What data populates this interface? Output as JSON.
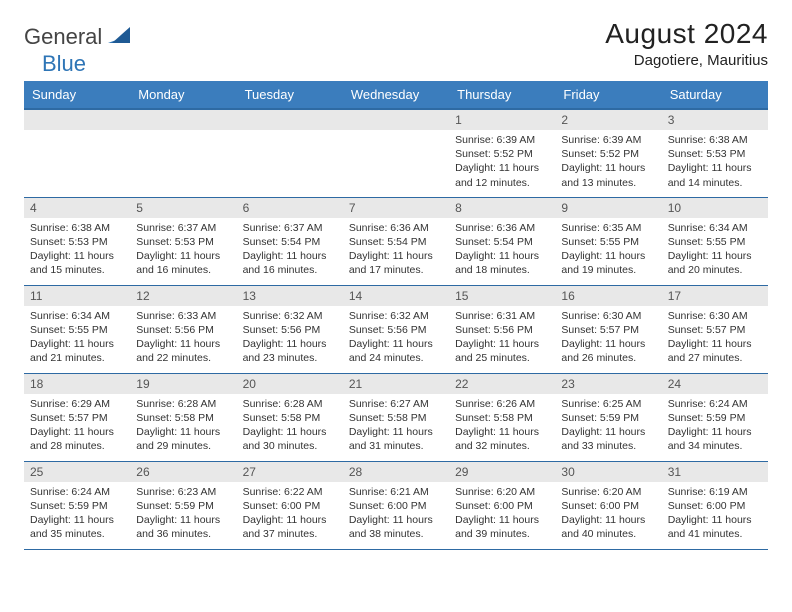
{
  "brand": {
    "word1": "General",
    "word2": "Blue",
    "icon_color": "#2e75b6"
  },
  "title": "August 2024",
  "location": "Dagotiere, Mauritius",
  "colors": {
    "header_bg": "#3b7dbd",
    "header_border": "#2e6aa3",
    "daynum_bg": "#e8e8e8",
    "text": "#333333"
  },
  "weekdays": [
    "Sunday",
    "Monday",
    "Tuesday",
    "Wednesday",
    "Thursday",
    "Friday",
    "Saturday"
  ],
  "weeks": [
    [
      null,
      null,
      null,
      null,
      {
        "n": "1",
        "sunrise": "6:39 AM",
        "sunset": "5:52 PM",
        "dl": "11 hours and 12 minutes."
      },
      {
        "n": "2",
        "sunrise": "6:39 AM",
        "sunset": "5:52 PM",
        "dl": "11 hours and 13 minutes."
      },
      {
        "n": "3",
        "sunrise": "6:38 AM",
        "sunset": "5:53 PM",
        "dl": "11 hours and 14 minutes."
      }
    ],
    [
      {
        "n": "4",
        "sunrise": "6:38 AM",
        "sunset": "5:53 PM",
        "dl": "11 hours and 15 minutes."
      },
      {
        "n": "5",
        "sunrise": "6:37 AM",
        "sunset": "5:53 PM",
        "dl": "11 hours and 16 minutes."
      },
      {
        "n": "6",
        "sunrise": "6:37 AM",
        "sunset": "5:54 PM",
        "dl": "11 hours and 16 minutes."
      },
      {
        "n": "7",
        "sunrise": "6:36 AM",
        "sunset": "5:54 PM",
        "dl": "11 hours and 17 minutes."
      },
      {
        "n": "8",
        "sunrise": "6:36 AM",
        "sunset": "5:54 PM",
        "dl": "11 hours and 18 minutes."
      },
      {
        "n": "9",
        "sunrise": "6:35 AM",
        "sunset": "5:55 PM",
        "dl": "11 hours and 19 minutes."
      },
      {
        "n": "10",
        "sunrise": "6:34 AM",
        "sunset": "5:55 PM",
        "dl": "11 hours and 20 minutes."
      }
    ],
    [
      {
        "n": "11",
        "sunrise": "6:34 AM",
        "sunset": "5:55 PM",
        "dl": "11 hours and 21 minutes."
      },
      {
        "n": "12",
        "sunrise": "6:33 AM",
        "sunset": "5:56 PM",
        "dl": "11 hours and 22 minutes."
      },
      {
        "n": "13",
        "sunrise": "6:32 AM",
        "sunset": "5:56 PM",
        "dl": "11 hours and 23 minutes."
      },
      {
        "n": "14",
        "sunrise": "6:32 AM",
        "sunset": "5:56 PM",
        "dl": "11 hours and 24 minutes."
      },
      {
        "n": "15",
        "sunrise": "6:31 AM",
        "sunset": "5:56 PM",
        "dl": "11 hours and 25 minutes."
      },
      {
        "n": "16",
        "sunrise": "6:30 AM",
        "sunset": "5:57 PM",
        "dl": "11 hours and 26 minutes."
      },
      {
        "n": "17",
        "sunrise": "6:30 AM",
        "sunset": "5:57 PM",
        "dl": "11 hours and 27 minutes."
      }
    ],
    [
      {
        "n": "18",
        "sunrise": "6:29 AM",
        "sunset": "5:57 PM",
        "dl": "11 hours and 28 minutes."
      },
      {
        "n": "19",
        "sunrise": "6:28 AM",
        "sunset": "5:58 PM",
        "dl": "11 hours and 29 minutes."
      },
      {
        "n": "20",
        "sunrise": "6:28 AM",
        "sunset": "5:58 PM",
        "dl": "11 hours and 30 minutes."
      },
      {
        "n": "21",
        "sunrise": "6:27 AM",
        "sunset": "5:58 PM",
        "dl": "11 hours and 31 minutes."
      },
      {
        "n": "22",
        "sunrise": "6:26 AM",
        "sunset": "5:58 PM",
        "dl": "11 hours and 32 minutes."
      },
      {
        "n": "23",
        "sunrise": "6:25 AM",
        "sunset": "5:59 PM",
        "dl": "11 hours and 33 minutes."
      },
      {
        "n": "24",
        "sunrise": "6:24 AM",
        "sunset": "5:59 PM",
        "dl": "11 hours and 34 minutes."
      }
    ],
    [
      {
        "n": "25",
        "sunrise": "6:24 AM",
        "sunset": "5:59 PM",
        "dl": "11 hours and 35 minutes."
      },
      {
        "n": "26",
        "sunrise": "6:23 AM",
        "sunset": "5:59 PM",
        "dl": "11 hours and 36 minutes."
      },
      {
        "n": "27",
        "sunrise": "6:22 AM",
        "sunset": "6:00 PM",
        "dl": "11 hours and 37 minutes."
      },
      {
        "n": "28",
        "sunrise": "6:21 AM",
        "sunset": "6:00 PM",
        "dl": "11 hours and 38 minutes."
      },
      {
        "n": "29",
        "sunrise": "6:20 AM",
        "sunset": "6:00 PM",
        "dl": "11 hours and 39 minutes."
      },
      {
        "n": "30",
        "sunrise": "6:20 AM",
        "sunset": "6:00 PM",
        "dl": "11 hours and 40 minutes."
      },
      {
        "n": "31",
        "sunrise": "6:19 AM",
        "sunset": "6:00 PM",
        "dl": "11 hours and 41 minutes."
      }
    ]
  ],
  "labels": {
    "sunrise": "Sunrise:",
    "sunset": "Sunset:",
    "daylight": "Daylight:"
  }
}
